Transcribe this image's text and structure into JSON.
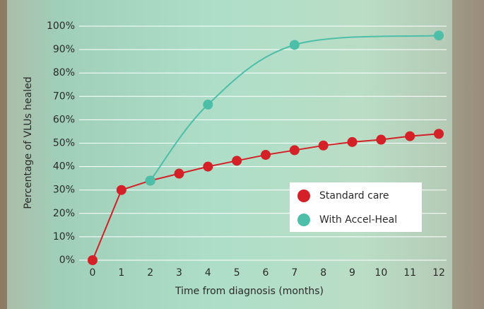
{
  "chart_data": {
    "type": "line",
    "x_label": "Time from diagnosis (months)",
    "y_label": "Percentage of VLUs healed",
    "xlim": [
      0,
      12
    ],
    "xticks": [
      0,
      1,
      2,
      3,
      4,
      5,
      6,
      7,
      8,
      9,
      10,
      11,
      12
    ],
    "ylim": [
      0,
      100
    ],
    "yticks": [
      {
        "value": 0,
        "label": "0%"
      },
      {
        "value": 10,
        "label": "10%"
      },
      {
        "value": 20,
        "label": "20%"
      },
      {
        "value": 30,
        "label": "30%"
      },
      {
        "value": 40,
        "label": "40%"
      },
      {
        "value": 50,
        "label": "50%"
      },
      {
        "value": 60,
        "label": "60%"
      },
      {
        "value": 70,
        "label": "70%"
      },
      {
        "value": 80,
        "label": "80%"
      },
      {
        "value": 90,
        "label": "90%"
      },
      {
        "value": 100,
        "label": "100%"
      }
    ],
    "grid": true,
    "legend": "lower right",
    "series": [
      {
        "name": "Standard care",
        "color": "#d42027",
        "smooth": false,
        "x": [
          0,
          1,
          2,
          3,
          4,
          5,
          6,
          7,
          8,
          9,
          10,
          11,
          12
        ],
        "values": [
          0,
          30,
          34,
          37,
          40,
          42.5,
          45,
          47,
          49,
          50.5,
          51.5,
          53,
          54
        ]
      },
      {
        "name": "With Accel-Heal",
        "color": "#4dbfa8",
        "smooth": true,
        "x": [
          2,
          4,
          7,
          12
        ],
        "values": [
          34,
          66.5,
          92,
          96
        ]
      }
    ]
  }
}
